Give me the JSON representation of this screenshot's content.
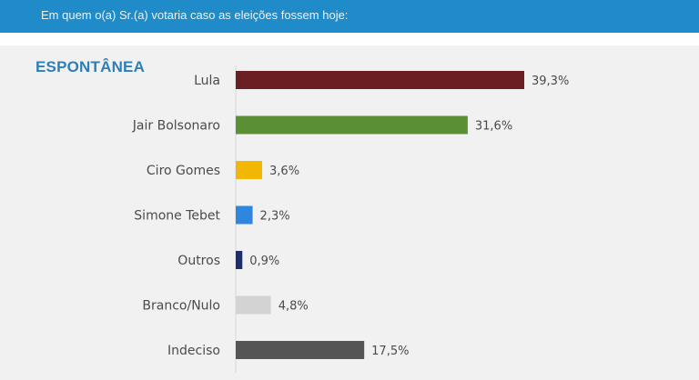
{
  "header": {
    "question": "Em quem o(a) Sr.(a) votaria caso as eleições fossem hoje:"
  },
  "section": {
    "title": "ESPONTÂNEA"
  },
  "colors": {
    "header_bg": "#1f8bc9",
    "title": "#2d7fb8",
    "panel_bg": "#f1f1f1"
  },
  "chart_data": {
    "type": "bar",
    "orientation": "horizontal",
    "title": "ESPONTÂNEA",
    "categories": [
      "Lula",
      "Jair Bolsonaro",
      "Ciro Gomes",
      "Simone Tebet",
      "Outros",
      "Branco/Nulo",
      "Indeciso"
    ],
    "values": [
      39.3,
      31.6,
      3.6,
      2.3,
      0.9,
      4.8,
      17.5
    ],
    "value_labels": [
      "39,3%",
      "31,6%",
      "3,6%",
      "2,3%",
      "0,9%",
      "4,8%",
      "17,5%"
    ],
    "colors": [
      "#6b1f22",
      "#5a8f35",
      "#f2b705",
      "#2e86de",
      "#1c2e6e",
      "#d3d3d3",
      "#555555"
    ],
    "unit": "%",
    "grid": false,
    "legend": "none"
  }
}
